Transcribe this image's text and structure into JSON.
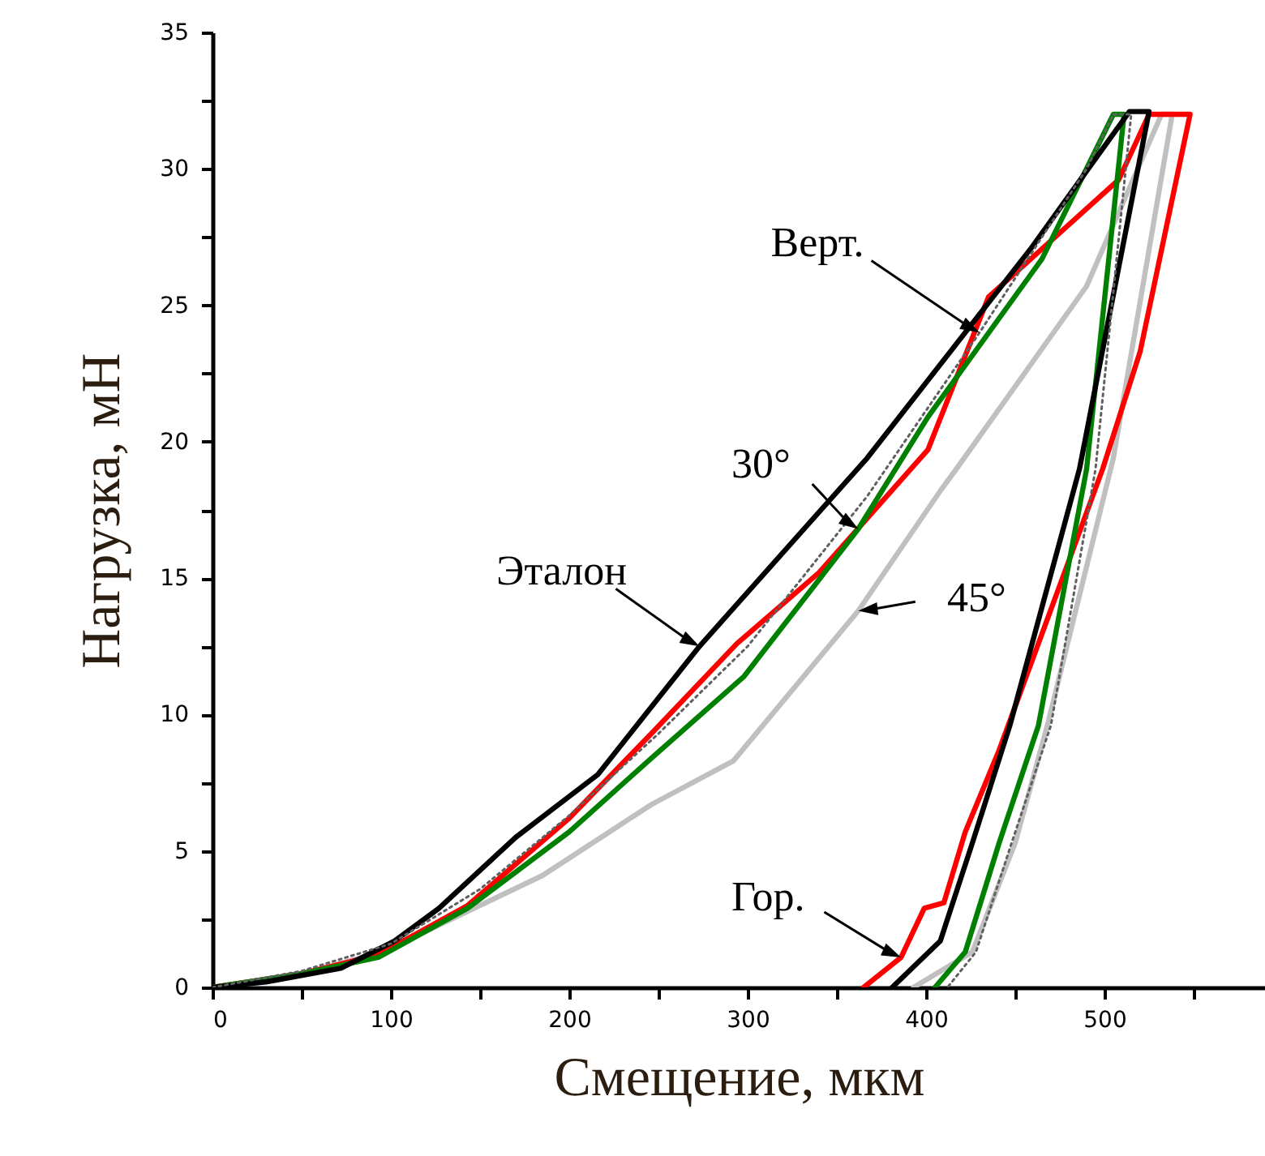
{
  "chart_data": {
    "type": "line",
    "xlabel": "Смещение, мкм",
    "ylabel": "Нагрузка, мН",
    "xlim": [
      0,
      590
    ],
    "xticks": [
      0,
      {
        "value": 50,
        "label": null
      },
      100,
      {
        "value": 150,
        "label": null
      },
      200,
      {
        "value": 250,
        "label": null
      },
      300,
      {
        "value": 350,
        "label": null
      },
      400,
      {
        "value": 450,
        "label": null
      },
      500,
      {
        "value": 550,
        "label": null
      }
    ],
    "ylim": [
      0,
      35
    ],
    "yticks": [
      0,
      {
        "value": 2.5,
        "label": null
      },
      5,
      {
        "value": 7.5,
        "label": null
      },
      10,
      {
        "value": 12.5,
        "label": null
      },
      15,
      {
        "value": 17.5,
        "label": null
      },
      20,
      {
        "value": 22.5,
        "label": null
      },
      25,
      {
        "value": 27.5,
        "label": null
      },
      30,
      {
        "value": 32.5,
        "label": null
      },
      35
    ],
    "grid": false,
    "marker": "none",
    "series": [
      {
        "color": "#c0c0c0",
        "x": [
          0,
          50,
          90,
          118,
          185,
          246,
          292,
          362,
          408,
          417,
          490,
          532,
          538,
          505,
          468,
          450,
          426,
          393
        ],
        "values": [
          0,
          0.5,
          1.2,
          2.0,
          4.1,
          6.7,
          8.3,
          13.8,
          18.2,
          19.0,
          25.7,
          32.0,
          32.0,
          19.4,
          9.6,
          5.3,
          1.3,
          0
        ]
      },
      {
        "color": "#ff0000",
        "x": [
          0,
          50,
          93,
          143,
          200,
          246,
          294,
          340,
          401,
          435,
          508,
          525,
          548,
          520,
          499,
          441,
          422,
          410,
          399,
          386,
          365
        ],
        "values": [
          0,
          0.5,
          1.2,
          3.0,
          6.2,
          9.3,
          12.6,
          15.2,
          19.7,
          25.3,
          29.6,
          32.0,
          32.0,
          23.3,
          19.0,
          8.7,
          5.7,
          3.1,
          2.9,
          1.1,
          0
        ]
      },
      {
        "color": "#008000",
        "x": [
          0,
          50,
          93,
          143,
          200,
          246,
          298,
          362,
          401,
          465,
          505,
          511,
          490,
          463,
          441,
          422,
          405
        ],
        "values": [
          0,
          0.5,
          1.1,
          2.9,
          5.7,
          8.4,
          11.4,
          16.8,
          20.9,
          26.7,
          32.0,
          32.0,
          19.0,
          9.6,
          5.3,
          1.3,
          0
        ]
      },
      {
        "color": "#000000",
        "x": [
          0,
          30,
          72,
          102,
          127,
          170,
          216,
          273,
          367,
          459,
          514,
          525,
          486,
          447,
          426,
          408,
          381
        ],
        "values": [
          0,
          0.2,
          0.7,
          1.7,
          2.9,
          5.5,
          7.8,
          12.5,
          19.4,
          27.1,
          32.1,
          32.1,
          19.0,
          9.6,
          5.3,
          1.7,
          0
        ]
      },
      {
        "color": "#606060",
        "line_style": "dotted",
        "x": [
          0,
          50,
          100,
          150,
          200,
          250,
          300,
          367,
          430,
          490,
          505,
          515,
          495,
          470,
          448,
          428,
          412
        ],
        "values": [
          0,
          0.6,
          1.6,
          3.6,
          6.3,
          9.3,
          12.5,
          18.0,
          24.0,
          30.0,
          32.0,
          32.0,
          19.0,
          9.6,
          5.3,
          1.3,
          0
        ]
      }
    ],
    "annotations": [
      {
        "text": "Верт.",
        "x": 430,
        "y": 24.0
      },
      {
        "text": "30°",
        "x": 362,
        "y": 16.8
      },
      {
        "text": "Эталон",
        "x": 273,
        "y": 12.5
      },
      {
        "text": "45°",
        "x": 362,
        "y": 13.8
      },
      {
        "text": "Гор.",
        "x": 386,
        "y": 1.1
      }
    ]
  }
}
